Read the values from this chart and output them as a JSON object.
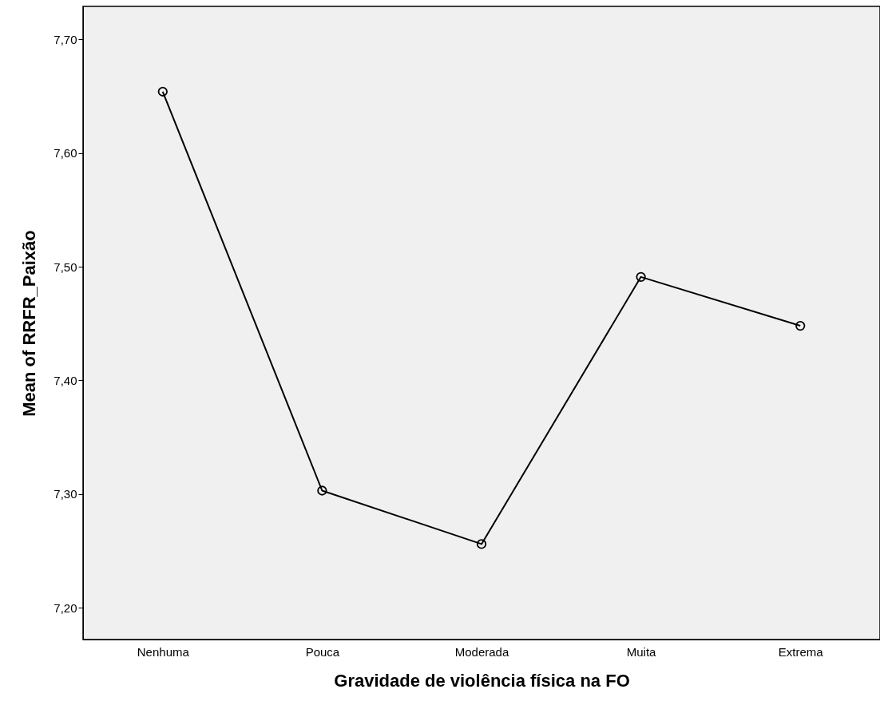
{
  "chart_data": {
    "type": "line",
    "xlabel": "Gravidade de violência física na FO",
    "ylabel": "Mean of RRFR_Paixão",
    "categories": [
      "Nenhuma",
      "Pouca",
      "Moderada",
      "Muita",
      "Extrema"
    ],
    "series": [
      {
        "color": "#000000",
        "values": [
          7.654,
          7.303,
          7.256,
          7.491,
          7.448
        ]
      }
    ],
    "ylim": [
      7.172,
      7.729
    ],
    "yticks": [
      {
        "value": 7.2,
        "label": "7,20"
      },
      {
        "value": 7.3,
        "label": "7,30"
      },
      {
        "value": 7.4,
        "label": "7,40"
      },
      {
        "value": 7.5,
        "label": "7,50"
      },
      {
        "value": 7.6,
        "label": "7,60"
      },
      {
        "value": 7.7,
        "label": "7,70"
      }
    ],
    "grid": false,
    "marker": "circle",
    "line_style": "solid"
  }
}
